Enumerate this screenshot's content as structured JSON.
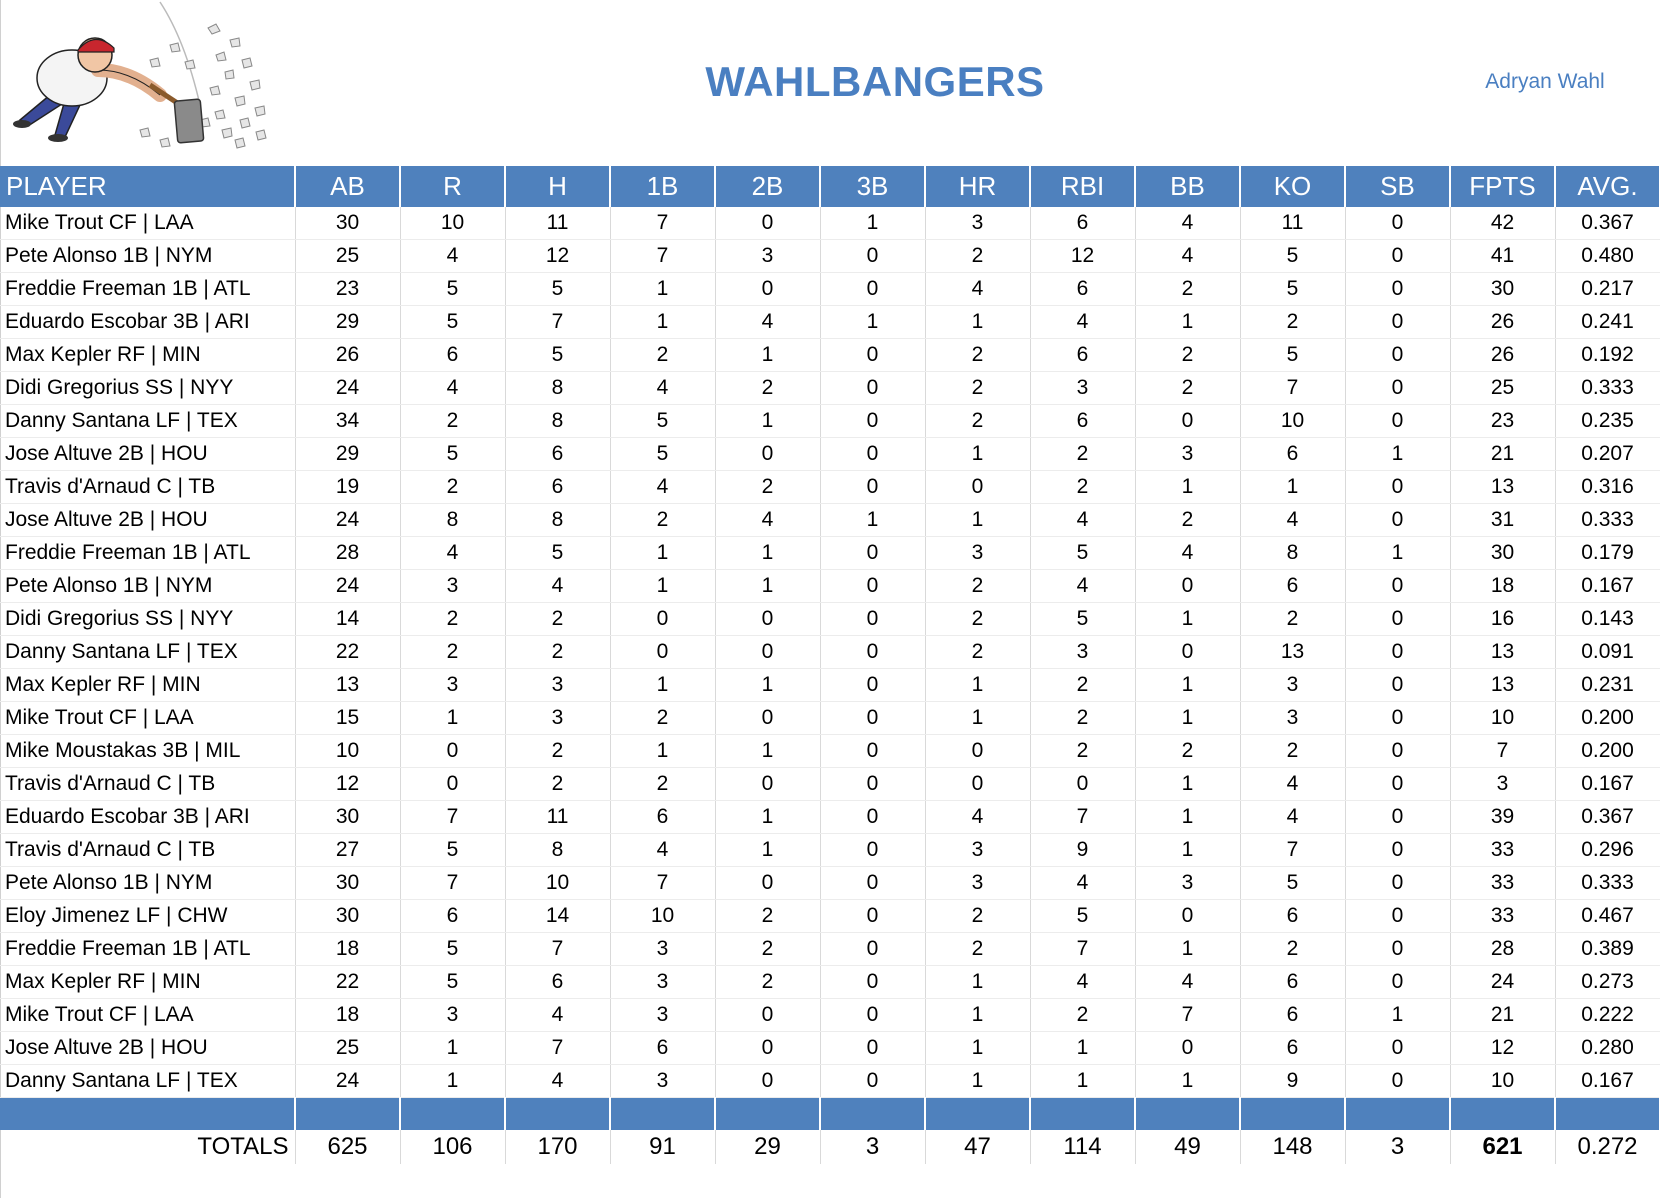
{
  "team_name": "WAHLBANGERS",
  "owner_name": "Adryan Wahl",
  "logo_icon": "sledgehammer-man-logo-icon",
  "colors": {
    "header_bg": "#4f81bd",
    "title": "#4a7fc1"
  },
  "columns": [
    "PLAYER",
    "AB",
    "R",
    "H",
    "1B",
    "2B",
    "3B",
    "HR",
    "RBI",
    "BB",
    "KO",
    "SB",
    "FPTS",
    "AVG."
  ],
  "rows": [
    {
      "cells": [
        "Mike Trout CF | LAA",
        "30",
        "10",
        "11",
        "7",
        "0",
        "1",
        "3",
        "6",
        "4",
        "11",
        "0",
        "42",
        "0.367"
      ]
    },
    {
      "cells": [
        "Pete Alonso 1B | NYM",
        "25",
        "4",
        "12",
        "7",
        "3",
        "0",
        "2",
        "12",
        "4",
        "5",
        "0",
        "41",
        "0.480"
      ]
    },
    {
      "cells": [
        "Freddie Freeman 1B | ATL",
        "23",
        "5",
        "5",
        "1",
        "0",
        "0",
        "4",
        "6",
        "2",
        "5",
        "0",
        "30",
        "0.217"
      ]
    },
    {
      "cells": [
        "Eduardo Escobar 3B | ARI",
        "29",
        "5",
        "7",
        "1",
        "4",
        "1",
        "1",
        "4",
        "1",
        "2",
        "0",
        "26",
        "0.241"
      ]
    },
    {
      "cells": [
        "Max Kepler RF | MIN",
        "26",
        "6",
        "5",
        "2",
        "1",
        "0",
        "2",
        "6",
        "2",
        "5",
        "0",
        "26",
        "0.192"
      ]
    },
    {
      "cells": [
        "Didi Gregorius SS | NYY",
        "24",
        "4",
        "8",
        "4",
        "2",
        "0",
        "2",
        "3",
        "2",
        "7",
        "0",
        "25",
        "0.333"
      ]
    },
    {
      "cells": [
        "Danny Santana LF | TEX",
        "34",
        "2",
        "8",
        "5",
        "1",
        "0",
        "2",
        "6",
        "0",
        "10",
        "0",
        "23",
        "0.235"
      ]
    },
    {
      "cells": [
        "Jose Altuve 2B | HOU",
        "29",
        "5",
        "6",
        "5",
        "0",
        "0",
        "1",
        "2",
        "3",
        "6",
        "1",
        "21",
        "0.207"
      ]
    },
    {
      "cells": [
        "Travis d'Arnaud C | TB",
        "19",
        "2",
        "6",
        "4",
        "2",
        "0",
        "0",
        "2",
        "1",
        "1",
        "0",
        "13",
        "0.316"
      ]
    },
    {
      "cells": [
        "Jose Altuve 2B | HOU",
        "24",
        "8",
        "8",
        "2",
        "4",
        "1",
        "1",
        "4",
        "2",
        "4",
        "0",
        "31",
        "0.333"
      ],
      "sep": true
    },
    {
      "cells": [
        "Freddie Freeman 1B | ATL",
        "28",
        "4",
        "5",
        "1",
        "1",
        "0",
        "3",
        "5",
        "4",
        "8",
        "1",
        "30",
        "0.179"
      ]
    },
    {
      "cells": [
        "Pete Alonso 1B | NYM",
        "24",
        "3",
        "4",
        "1",
        "1",
        "0",
        "2",
        "4",
        "0",
        "6",
        "0",
        "18",
        "0.167"
      ]
    },
    {
      "cells": [
        "Didi Gregorius SS | NYY",
        "14",
        "2",
        "2",
        "0",
        "0",
        "0",
        "2",
        "5",
        "1",
        "2",
        "0",
        "16",
        "0.143"
      ]
    },
    {
      "cells": [
        "Danny Santana LF | TEX",
        "22",
        "2",
        "2",
        "0",
        "0",
        "0",
        "2",
        "3",
        "0",
        "13",
        "0",
        "13",
        "0.091"
      ]
    },
    {
      "cells": [
        "Max Kepler RF | MIN",
        "13",
        "3",
        "3",
        "1",
        "1",
        "0",
        "1",
        "2",
        "1",
        "3",
        "0",
        "13",
        "0.231"
      ]
    },
    {
      "cells": [
        "Mike Trout CF | LAA",
        "15",
        "1",
        "3",
        "2",
        "0",
        "0",
        "1",
        "2",
        "1",
        "3",
        "0",
        "10",
        "0.200"
      ]
    },
    {
      "cells": [
        "Mike Moustakas 3B | MIL",
        "10",
        "0",
        "2",
        "1",
        "1",
        "0",
        "0",
        "2",
        "2",
        "2",
        "0",
        "7",
        "0.200"
      ]
    },
    {
      "cells": [
        "Travis d'Arnaud C | TB",
        "12",
        "0",
        "2",
        "2",
        "0",
        "0",
        "0",
        "0",
        "1",
        "4",
        "0",
        "3",
        "0.167"
      ]
    },
    {
      "cells": [
        "Eduardo Escobar 3B | ARI",
        "30",
        "7",
        "11",
        "6",
        "1",
        "0",
        "4",
        "7",
        "1",
        "4",
        "0",
        "39",
        "0.367"
      ],
      "sep": true
    },
    {
      "cells": [
        "Travis d'Arnaud C | TB",
        "27",
        "5",
        "8",
        "4",
        "1",
        "0",
        "3",
        "9",
        "1",
        "7",
        "0",
        "33",
        "0.296"
      ]
    },
    {
      "cells": [
        "Pete Alonso 1B | NYM",
        "30",
        "7",
        "10",
        "7",
        "0",
        "0",
        "3",
        "4",
        "3",
        "5",
        "0",
        "33",
        "0.333"
      ]
    },
    {
      "cells": [
        "Eloy Jimenez LF | CHW",
        "30",
        "6",
        "14",
        "10",
        "2",
        "0",
        "2",
        "5",
        "0",
        "6",
        "0",
        "33",
        "0.467"
      ]
    },
    {
      "cells": [
        "Freddie Freeman 1B | ATL",
        "18",
        "5",
        "7",
        "3",
        "2",
        "0",
        "2",
        "7",
        "1",
        "2",
        "0",
        "28",
        "0.389"
      ]
    },
    {
      "cells": [
        "Max Kepler RF | MIN",
        "22",
        "5",
        "6",
        "3",
        "2",
        "0",
        "1",
        "4",
        "4",
        "6",
        "0",
        "24",
        "0.273"
      ]
    },
    {
      "cells": [
        "Mike Trout CF | LAA",
        "18",
        "3",
        "4",
        "3",
        "0",
        "0",
        "1",
        "2",
        "7",
        "6",
        "1",
        "21",
        "0.222"
      ]
    },
    {
      "cells": [
        "Jose Altuve 2B | HOU",
        "25",
        "1",
        "7",
        "6",
        "0",
        "0",
        "1",
        "1",
        "0",
        "6",
        "0",
        "12",
        "0.280"
      ]
    },
    {
      "cells": [
        "Danny Santana LF | TEX",
        "24",
        "1",
        "4",
        "3",
        "0",
        "0",
        "1",
        "1",
        "1",
        "9",
        "0",
        "10",
        "0.167"
      ]
    }
  ],
  "totals": {
    "label": "TOTALS",
    "values": [
      "625",
      "106",
      "170",
      "91",
      "29",
      "3",
      "47",
      "114",
      "49",
      "148",
      "3",
      "621",
      "0.272"
    ]
  }
}
